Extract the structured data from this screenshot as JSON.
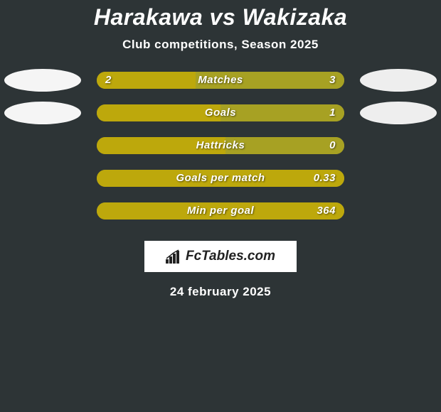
{
  "title": "Harakawa vs Wakizaka",
  "subtitle": "Club competitions, Season 2025",
  "date": "24 february 2025",
  "logo_text": "FcTables.com",
  "colors": {
    "background": "#2d3436",
    "left_fill": "#bda80c",
    "right_fill": "#a7a123",
    "avatar_left": "#f5f5f5",
    "avatar_right": "#eeeeee",
    "text": "#ffffff"
  },
  "rows": [
    {
      "metric": "Matches",
      "left_value": "2",
      "right_value": "3",
      "left_pct": 40,
      "right_pct": 60,
      "show_avatars": true
    },
    {
      "metric": "Goals",
      "left_value": "",
      "right_value": "1",
      "left_pct": 50,
      "right_pct": 50,
      "show_avatars": true
    },
    {
      "metric": "Hattricks",
      "left_value": "",
      "right_value": "0",
      "left_pct": 52,
      "right_pct": 48,
      "show_avatars": false
    },
    {
      "metric": "Goals per match",
      "left_value": "",
      "right_value": "0.33",
      "left_pct": 100,
      "right_pct": 0,
      "show_avatars": false,
      "right_overlay": true
    },
    {
      "metric": "Min per goal",
      "left_value": "",
      "right_value": "364",
      "left_pct": 100,
      "right_pct": 0,
      "show_avatars": false,
      "right_overlay": true
    }
  ]
}
